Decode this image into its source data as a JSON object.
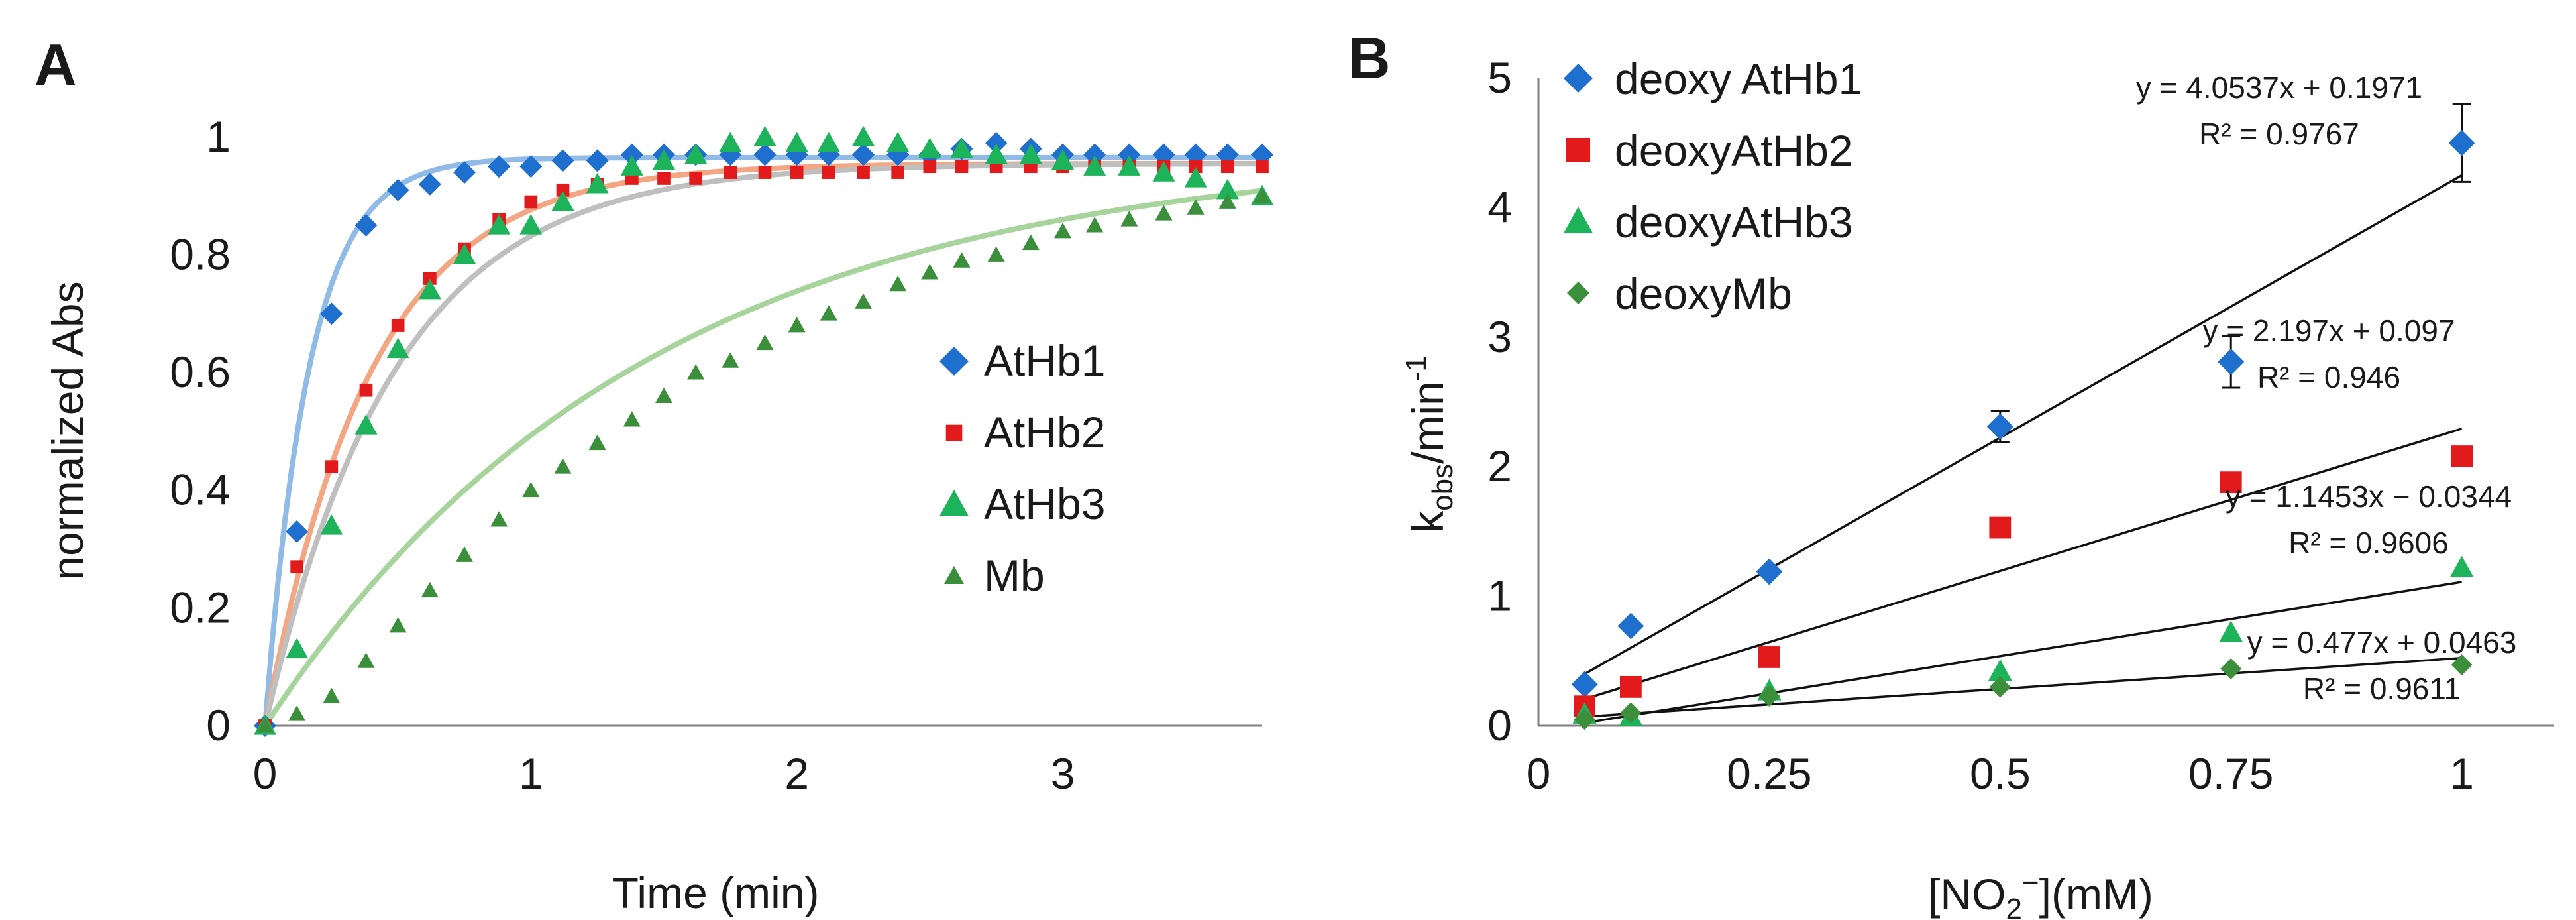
{
  "chart_data": [
    {
      "panel": "A",
      "type": "scatter",
      "xlabel": "Time (min)",
      "ylabel": "normalized Abs",
      "xlim": [
        0,
        3.75
      ],
      "ylim": [
        0,
        1.1
      ],
      "xticks": [
        "0",
        "1",
        "2",
        "3"
      ],
      "yticks": [
        "0",
        "0.2",
        "0.4",
        "0.6",
        "0.8",
        "1"
      ],
      "series": [
        {
          "name": "AtHb1",
          "marker": "diamond",
          "color": "#1f6fce",
          "fit_color": "#8fbbe6",
          "fit": {
            "kind": "exp",
            "a": 0.965,
            "k": 6.0
          },
          "x": [
            0,
            0.12,
            0.25,
            0.38,
            0.5,
            0.62,
            0.75,
            0.88,
            1.0,
            1.12,
            1.25,
            1.38,
            1.5,
            1.62,
            1.75,
            1.88,
            2.0,
            2.12,
            2.25,
            2.38,
            2.5,
            2.62,
            2.75,
            2.88,
            3.0,
            3.12,
            3.25,
            3.38,
            3.5,
            3.62,
            3.75
          ],
          "y": [
            0,
            0.33,
            0.7,
            0.85,
            0.91,
            0.92,
            0.94,
            0.95,
            0.95,
            0.96,
            0.96,
            0.97,
            0.97,
            0.97,
            0.97,
            0.97,
            0.97,
            0.97,
            0.97,
            0.97,
            0.97,
            0.98,
            0.99,
            0.98,
            0.97,
            0.97,
            0.97,
            0.97,
            0.97,
            0.97,
            0.97
          ]
        },
        {
          "name": "AtHb2",
          "marker": "square",
          "color": "#e31a1c",
          "fit_color": "#f4a582",
          "fit": {
            "kind": "exp",
            "a": 0.955,
            "k": 2.5
          },
          "x": [
            0,
            0.12,
            0.25,
            0.38,
            0.5,
            0.62,
            0.75,
            0.88,
            1.0,
            1.12,
            1.25,
            1.38,
            1.5,
            1.62,
            1.75,
            1.88,
            2.0,
            2.12,
            2.25,
            2.38,
            2.5,
            2.62,
            2.75,
            2.88,
            3.0,
            3.12,
            3.25,
            3.38,
            3.5,
            3.62,
            3.75
          ],
          "y": [
            0,
            0.27,
            0.44,
            0.57,
            0.68,
            0.76,
            0.81,
            0.86,
            0.89,
            0.91,
            0.92,
            0.93,
            0.93,
            0.93,
            0.94,
            0.94,
            0.94,
            0.94,
            0.94,
            0.94,
            0.95,
            0.95,
            0.95,
            0.95,
            0.95,
            0.95,
            0.95,
            0.95,
            0.95,
            0.95,
            0.95
          ]
        },
        {
          "name": "AtHb3",
          "marker": "triangle",
          "color": "#1db35a",
          "fit_color": "#bfbfbf",
          "fit": {
            "kind": "exp",
            "a": 0.955,
            "k": 2.05
          },
          "x": [
            0,
            0.12,
            0.25,
            0.38,
            0.5,
            0.62,
            0.75,
            0.88,
            1.0,
            1.12,
            1.25,
            1.38,
            1.5,
            1.62,
            1.75,
            1.88,
            2.0,
            2.12,
            2.25,
            2.38,
            2.5,
            2.62,
            2.75,
            2.88,
            3.0,
            3.12,
            3.25,
            3.38,
            3.5,
            3.62,
            3.75
          ],
          "y": [
            0,
            0.13,
            0.34,
            0.51,
            0.64,
            0.74,
            0.8,
            0.85,
            0.85,
            0.89,
            0.92,
            0.95,
            0.96,
            0.97,
            0.99,
            1.0,
            0.99,
            0.99,
            1.0,
            0.99,
            0.98,
            0.98,
            0.97,
            0.97,
            0.96,
            0.95,
            0.95,
            0.94,
            0.93,
            0.91,
            0.9
          ]
        },
        {
          "name": "Mb",
          "marker": "triangle",
          "color": "#3b8f3b",
          "fit_color": "#a6d49a",
          "fit": {
            "kind": "exp",
            "a": 0.98,
            "k": 0.7
          },
          "x": [
            0,
            0.12,
            0.25,
            0.38,
            0.5,
            0.62,
            0.75,
            0.88,
            1.0,
            1.12,
            1.25,
            1.38,
            1.5,
            1.62,
            1.75,
            1.88,
            2.0,
            2.12,
            2.25,
            2.38,
            2.5,
            2.62,
            2.75,
            2.88,
            3.0,
            3.12,
            3.25,
            3.38,
            3.5,
            3.62,
            3.75
          ],
          "y": [
            0,
            0.02,
            0.05,
            0.11,
            0.17,
            0.23,
            0.29,
            0.35,
            0.4,
            0.44,
            0.48,
            0.52,
            0.56,
            0.6,
            0.62,
            0.65,
            0.68,
            0.7,
            0.72,
            0.75,
            0.77,
            0.79,
            0.8,
            0.82,
            0.84,
            0.85,
            0.86,
            0.87,
            0.88,
            0.89,
            0.9
          ]
        }
      ],
      "legend": [
        "AtHb1",
        "AtHb2",
        "AtHb3",
        "Mb"
      ],
      "legend_position": "center-right"
    },
    {
      "panel": "B",
      "type": "scatter",
      "xlabel_parts": [
        "[NO",
        "2",
        "−",
        "](mM)"
      ],
      "ylabel_parts": [
        "k",
        "obs",
        "/min",
        "-1"
      ],
      "xlim": [
        0,
        1.1
      ],
      "ylim": [
        0,
        5
      ],
      "xticks": [
        "0",
        "0.25",
        "0.5",
        "0.75",
        "1"
      ],
      "yticks": [
        "0",
        "1",
        "2",
        "3",
        "4",
        "5"
      ],
      "series": [
        {
          "name": "deoxy AtHb1",
          "marker": "diamond",
          "color": "#1f6fce",
          "x": [
            0.05,
            0.1,
            0.25,
            0.5,
            0.75,
            1.0
          ],
          "y": [
            0.32,
            0.77,
            1.19,
            2.31,
            2.81,
            4.5
          ],
          "err": [
            0,
            0,
            0,
            0.12,
            0.2,
            0.3
          ],
          "fit": {
            "slope": 4.0537,
            "intercept": 0.1971
          },
          "equation": "y = 4.0537x + 0.1971",
          "r2": "R² = 0.9767"
        },
        {
          "name": "deoxyAtHb2",
          "marker": "square",
          "color": "#e31a1c",
          "x": [
            0.05,
            0.1,
            0.25,
            0.5,
            0.75,
            1.0
          ],
          "y": [
            0.15,
            0.3,
            0.53,
            1.53,
            1.88,
            2.08
          ],
          "err": [
            0,
            0,
            0,
            0,
            0,
            0
          ],
          "fit": {
            "slope": 2.197,
            "intercept": 0.097
          },
          "equation": "y = 2.197x + 0.097",
          "r2": "R² = 0.946"
        },
        {
          "name": "deoxyAtHb3",
          "marker": "triangle",
          "color": "#1db35a",
          "x": [
            0.05,
            0.1,
            0.25,
            0.5,
            0.75,
            1.0
          ],
          "y": [
            0.09,
            0.07,
            0.27,
            0.42,
            0.72,
            1.22
          ],
          "err": [
            0,
            0,
            0,
            0,
            0,
            0
          ],
          "fit": {
            "slope": 1.1453,
            "intercept": -0.0344
          },
          "equation": "y = 1.1453x − 0.0344",
          "r2": "R² = 0.9606"
        },
        {
          "name": "deoxyMb",
          "marker": "diamond",
          "color": "#3b8f3b",
          "x": [
            0.05,
            0.1,
            0.25,
            0.5,
            0.75,
            1.0
          ],
          "y": [
            0.05,
            0.1,
            0.23,
            0.3,
            0.44,
            0.47
          ],
          "err": [
            0,
            0,
            0,
            0,
            0,
            0
          ],
          "fit": {
            "slope": 0.477,
            "intercept": 0.0463
          },
          "equation": "y = 0.477x + 0.0463",
          "r2": "R² = 0.9611"
        }
      ],
      "legend": [
        "deoxy AtHb1",
        "deoxyAtHb2",
        "deoxyAtHb3",
        "deoxyMb"
      ],
      "legend_position": "top-left"
    }
  ],
  "panel_labels": [
    "A",
    "B"
  ]
}
